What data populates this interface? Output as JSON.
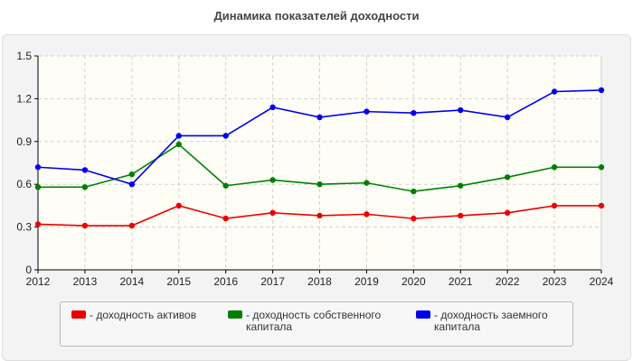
{
  "chart_data": {
    "type": "line",
    "title": "Динамика показателей доходности",
    "x": [
      "2012",
      "2013",
      "2014",
      "2015",
      "2016",
      "2017",
      "2018",
      "2019",
      "2020",
      "2021",
      "2022",
      "2023",
      "2024"
    ],
    "ylim": [
      0,
      1.5
    ],
    "yticks": [
      "0",
      "0.3",
      "0.6",
      "0.9",
      "1.2",
      "1.5"
    ],
    "grid": true,
    "legend_position": "bottom",
    "series": [
      {
        "name": "- доходность активов",
        "color": "#ee0000",
        "values": [
          0.32,
          0.31,
          0.31,
          0.45,
          0.36,
          0.4,
          0.38,
          0.39,
          0.36,
          0.38,
          0.4,
          0.45,
          0.45
        ]
      },
      {
        "name": "- доходность собственного капитала",
        "color": "#008000",
        "values": [
          0.58,
          0.58,
          0.67,
          0.88,
          0.59,
          0.63,
          0.6,
          0.61,
          0.55,
          0.59,
          0.65,
          0.72,
          0.72
        ]
      },
      {
        "name": "- доходность заемного капитала",
        "color": "#0000ee",
        "values": [
          0.72,
          0.7,
          0.6,
          0.94,
          0.94,
          1.14,
          1.07,
          1.11,
          1.1,
          1.12,
          1.07,
          1.25,
          1.26
        ]
      }
    ]
  }
}
